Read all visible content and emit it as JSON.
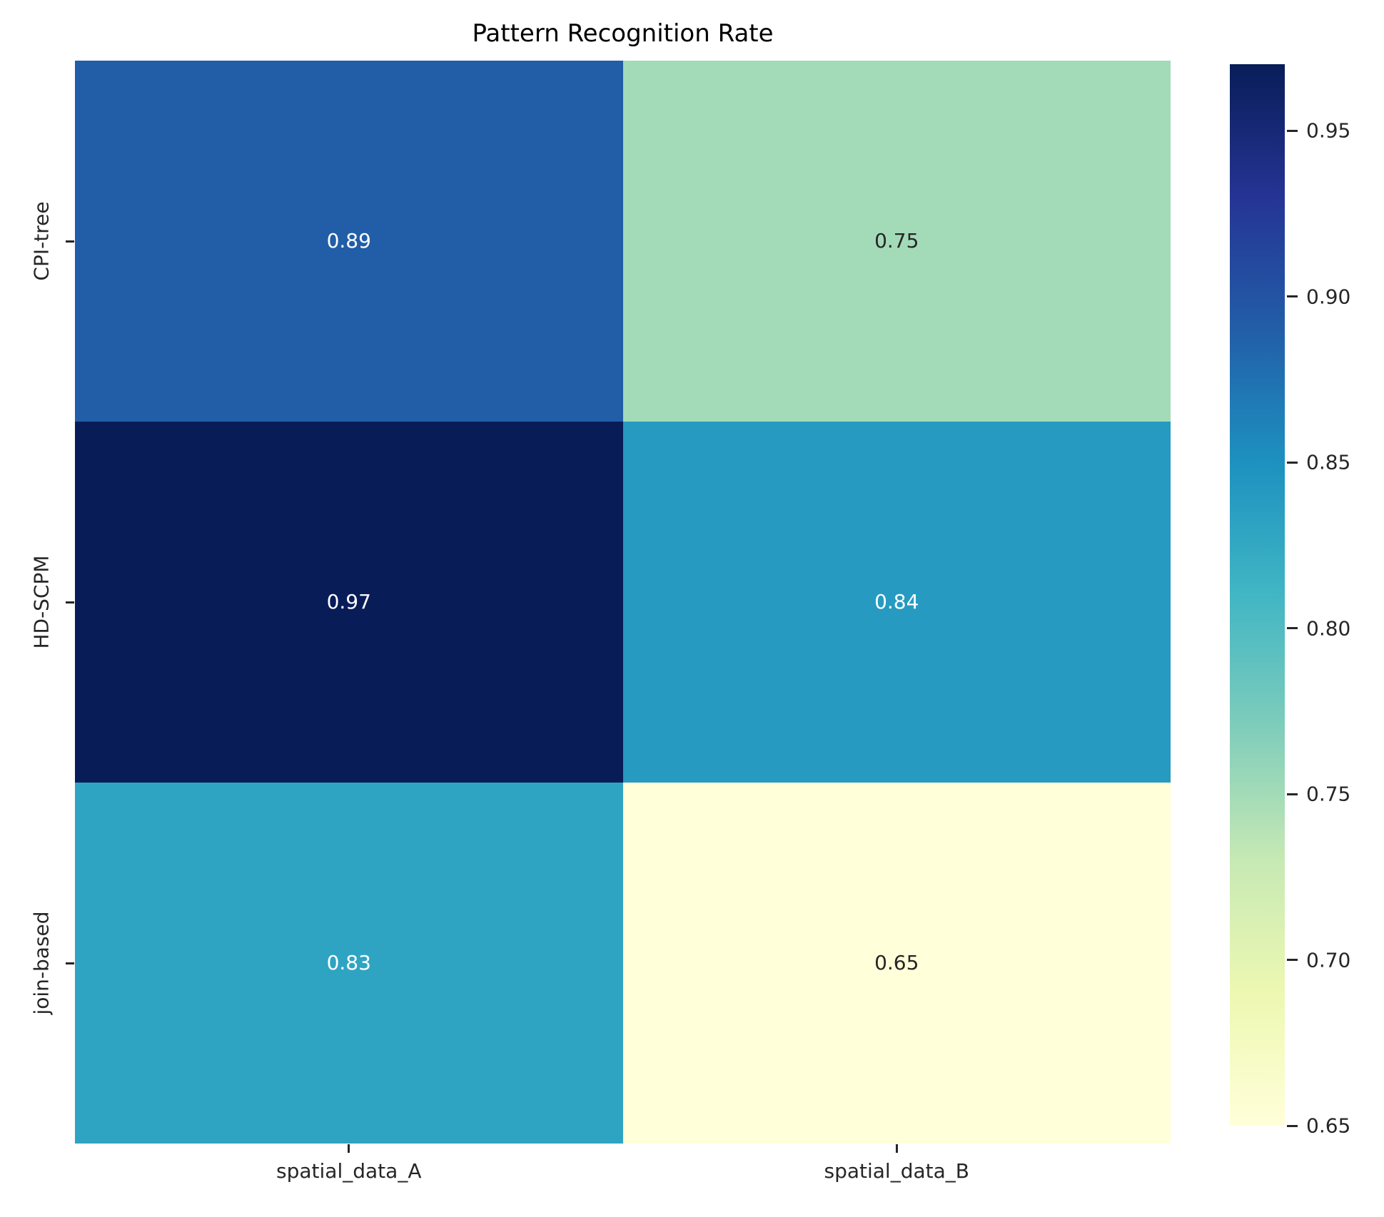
{
  "chart_data": {
    "type": "heatmap",
    "title": "Pattern Recognition Rate",
    "rows": [
      "CPI-tree",
      "HD-SCPM",
      "join-based"
    ],
    "columns": [
      "spatial_data_A",
      "spatial_data_B"
    ],
    "values": [
      [
        0.89,
        0.75
      ],
      [
        0.97,
        0.84
      ],
      [
        0.83,
        0.65
      ]
    ],
    "value_format_decimals": 2,
    "vmin": 0.65,
    "vmax": 0.97,
    "colormap_name": "YlGnBu",
    "colormap_stops": [
      "#ffffd9",
      "#edf8b1",
      "#c7e9b4",
      "#7fcdbb",
      "#41b6c4",
      "#1d91c0",
      "#225ea8",
      "#253494",
      "#081d58"
    ],
    "colorbar_tick_values": [
      0.95,
      0.9,
      0.85,
      0.8,
      0.75,
      0.7,
      0.65
    ],
    "colorbar_position": "right",
    "annotation_color_light": "#ffffff",
    "annotation_color_dark": "#262626",
    "tick_color": "#262626",
    "grid": false
  }
}
